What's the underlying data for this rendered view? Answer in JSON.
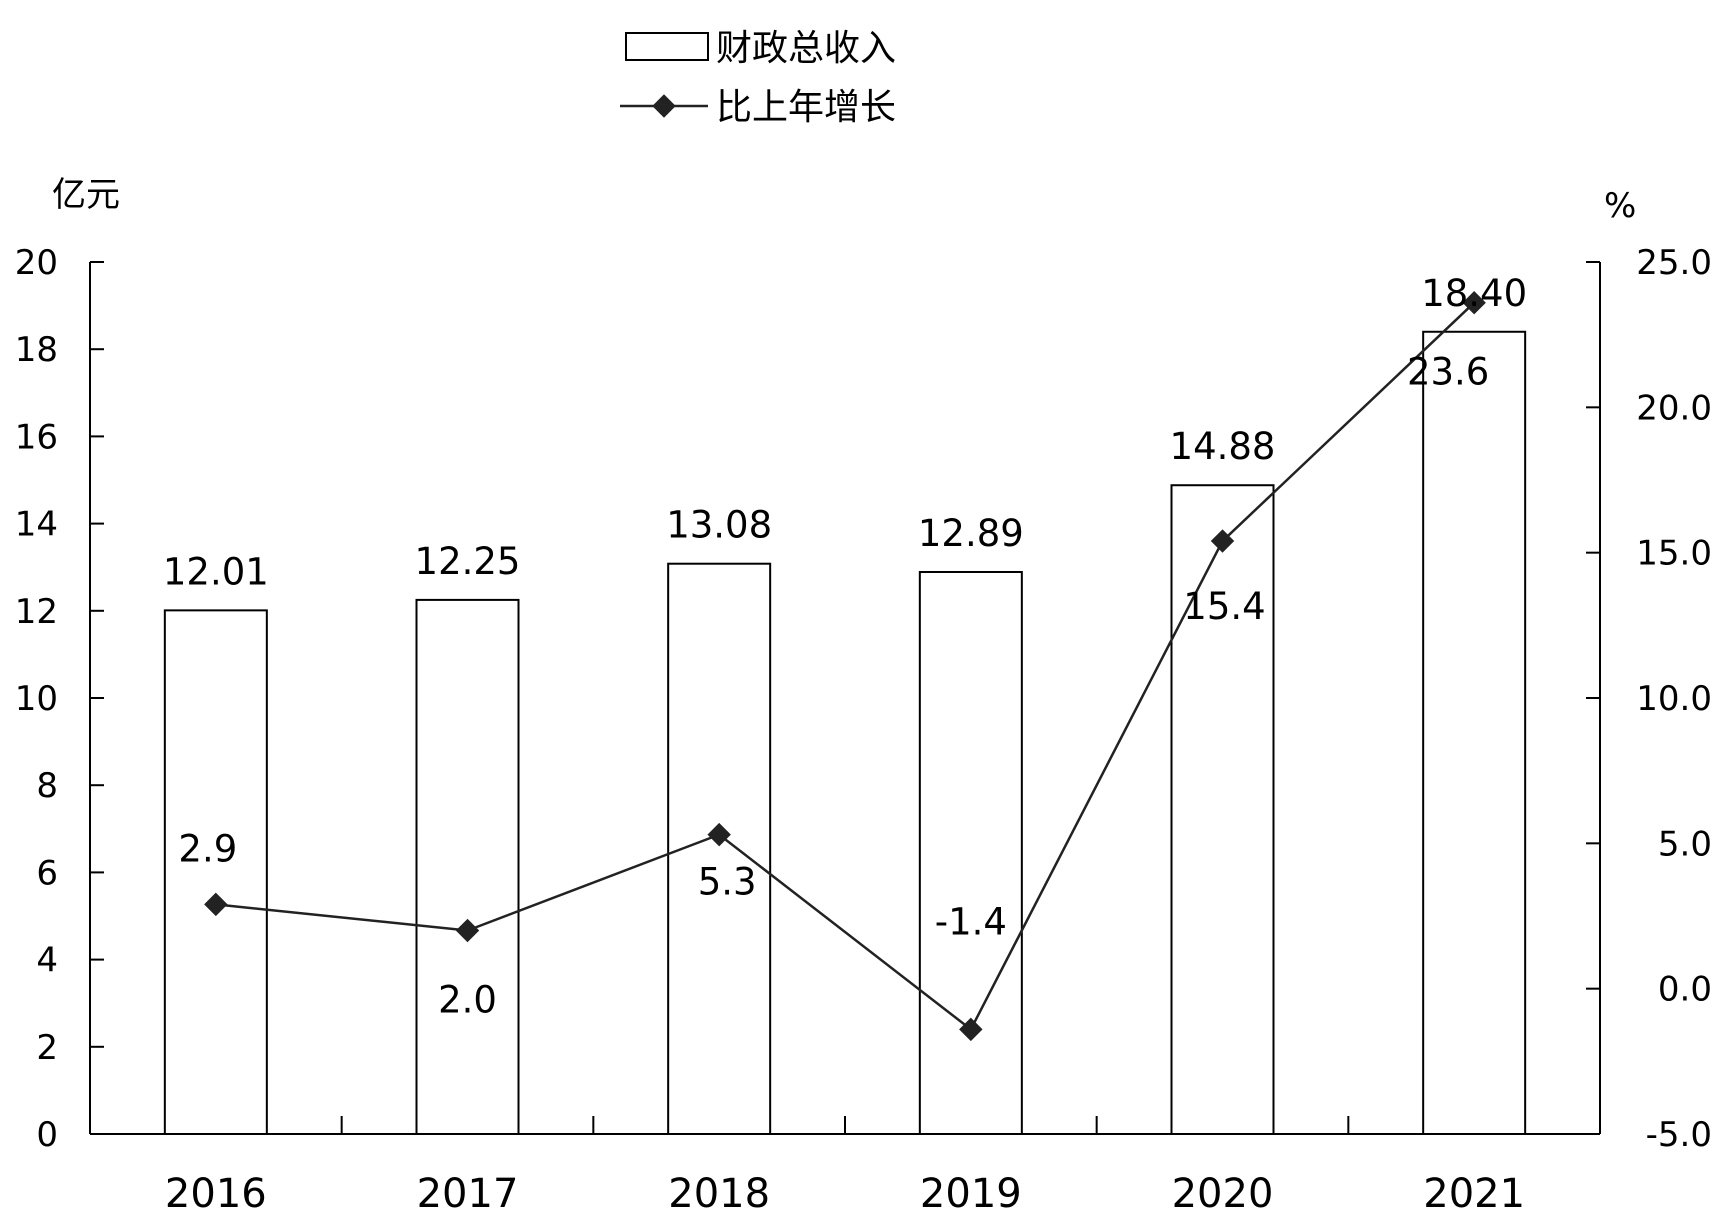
{
  "chart_data": {
    "type": "bar",
    "categories": [
      "2016",
      "2017",
      "2018",
      "2019",
      "2020",
      "2021"
    ],
    "series": [
      {
        "name": "财政总收入",
        "type": "bar",
        "axis": "left",
        "values": [
          12.01,
          12.25,
          13.08,
          12.89,
          14.88,
          18.4
        ],
        "labels": [
          "12.01",
          "12.25",
          "13.08",
          "12.89",
          "14.88",
          "18.40"
        ]
      },
      {
        "name": "比上年增长",
        "type": "line",
        "axis": "right",
        "values": [
          2.9,
          2.0,
          5.3,
          -1.4,
          15.4,
          23.6
        ],
        "labels": [
          "2.9",
          "2.0",
          "5.3",
          "-1.4",
          "15.4",
          "23.6"
        ]
      }
    ],
    "y_left": {
      "unit": "亿元",
      "ylim": [
        0,
        20
      ],
      "ticks": [
        0,
        2,
        4,
        6,
        8,
        10,
        12,
        14,
        16,
        18,
        20
      ],
      "tick_labels": [
        "0",
        "2",
        "4",
        "6",
        "8",
        "10",
        "12",
        "14",
        "16",
        "18",
        "20"
      ]
    },
    "y_right": {
      "unit": "%",
      "ylim": [
        -5,
        25
      ],
      "ticks": [
        -5,
        0,
        5,
        10,
        15,
        20,
        25
      ],
      "tick_labels": [
        "-5.0",
        "0.0",
        "5.0",
        "10.0",
        "15.0",
        "20.0",
        "25.0"
      ]
    },
    "legend": {
      "placement": "top-center",
      "entries": [
        "财政总收入",
        "比上年增长"
      ]
    },
    "grid": false
  }
}
